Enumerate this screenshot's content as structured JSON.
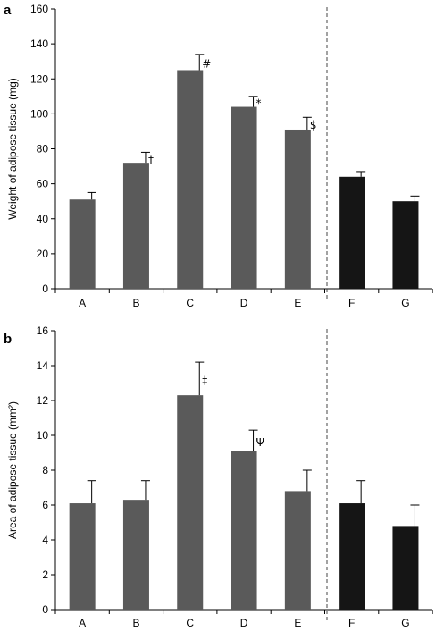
{
  "chart_data": [
    {
      "panel": "a",
      "type": "bar",
      "ylabel": "Weight of adipose tissue (mg)",
      "ylim": [
        0,
        160
      ],
      "yticks": [
        0,
        20,
        40,
        60,
        80,
        100,
        120,
        140,
        160
      ],
      "categories": [
        "A",
        "B",
        "C",
        "D",
        "E",
        "F",
        "G"
      ],
      "values": [
        51,
        72,
        125,
        104,
        91,
        64,
        50
      ],
      "errors": [
        4,
        6,
        9,
        6,
        7,
        3,
        3
      ],
      "markers": [
        "",
        "†",
        "#",
        "*",
        "$",
        "",
        ""
      ],
      "bar_colors": [
        "#5a5a5a",
        "#5a5a5a",
        "#5a5a5a",
        "#5a5a5a",
        "#5a5a5a",
        "#151515",
        "#151515"
      ],
      "divider_after_category": "E"
    },
    {
      "panel": "b",
      "type": "bar",
      "ylabel": "Area of adipose tissue (mm²)",
      "ylim": [
        0,
        16
      ],
      "yticks": [
        0,
        2,
        4,
        6,
        8,
        10,
        12,
        14,
        16
      ],
      "categories": [
        "A",
        "B",
        "C",
        "D",
        "E",
        "F",
        "G"
      ],
      "values": [
        6.1,
        6.3,
        12.3,
        9.1,
        6.8,
        6.1,
        4.8
      ],
      "errors": [
        1.3,
        1.1,
        1.9,
        1.2,
        1.2,
        1.3,
        1.2
      ],
      "markers": [
        "",
        "",
        "‡",
        "Ψ",
        "",
        "",
        ""
      ],
      "bar_colors": [
        "#5a5a5a",
        "#5a5a5a",
        "#5a5a5a",
        "#5a5a5a",
        "#5a5a5a",
        "#151515",
        "#151515"
      ],
      "divider_after_category": "E"
    }
  ]
}
